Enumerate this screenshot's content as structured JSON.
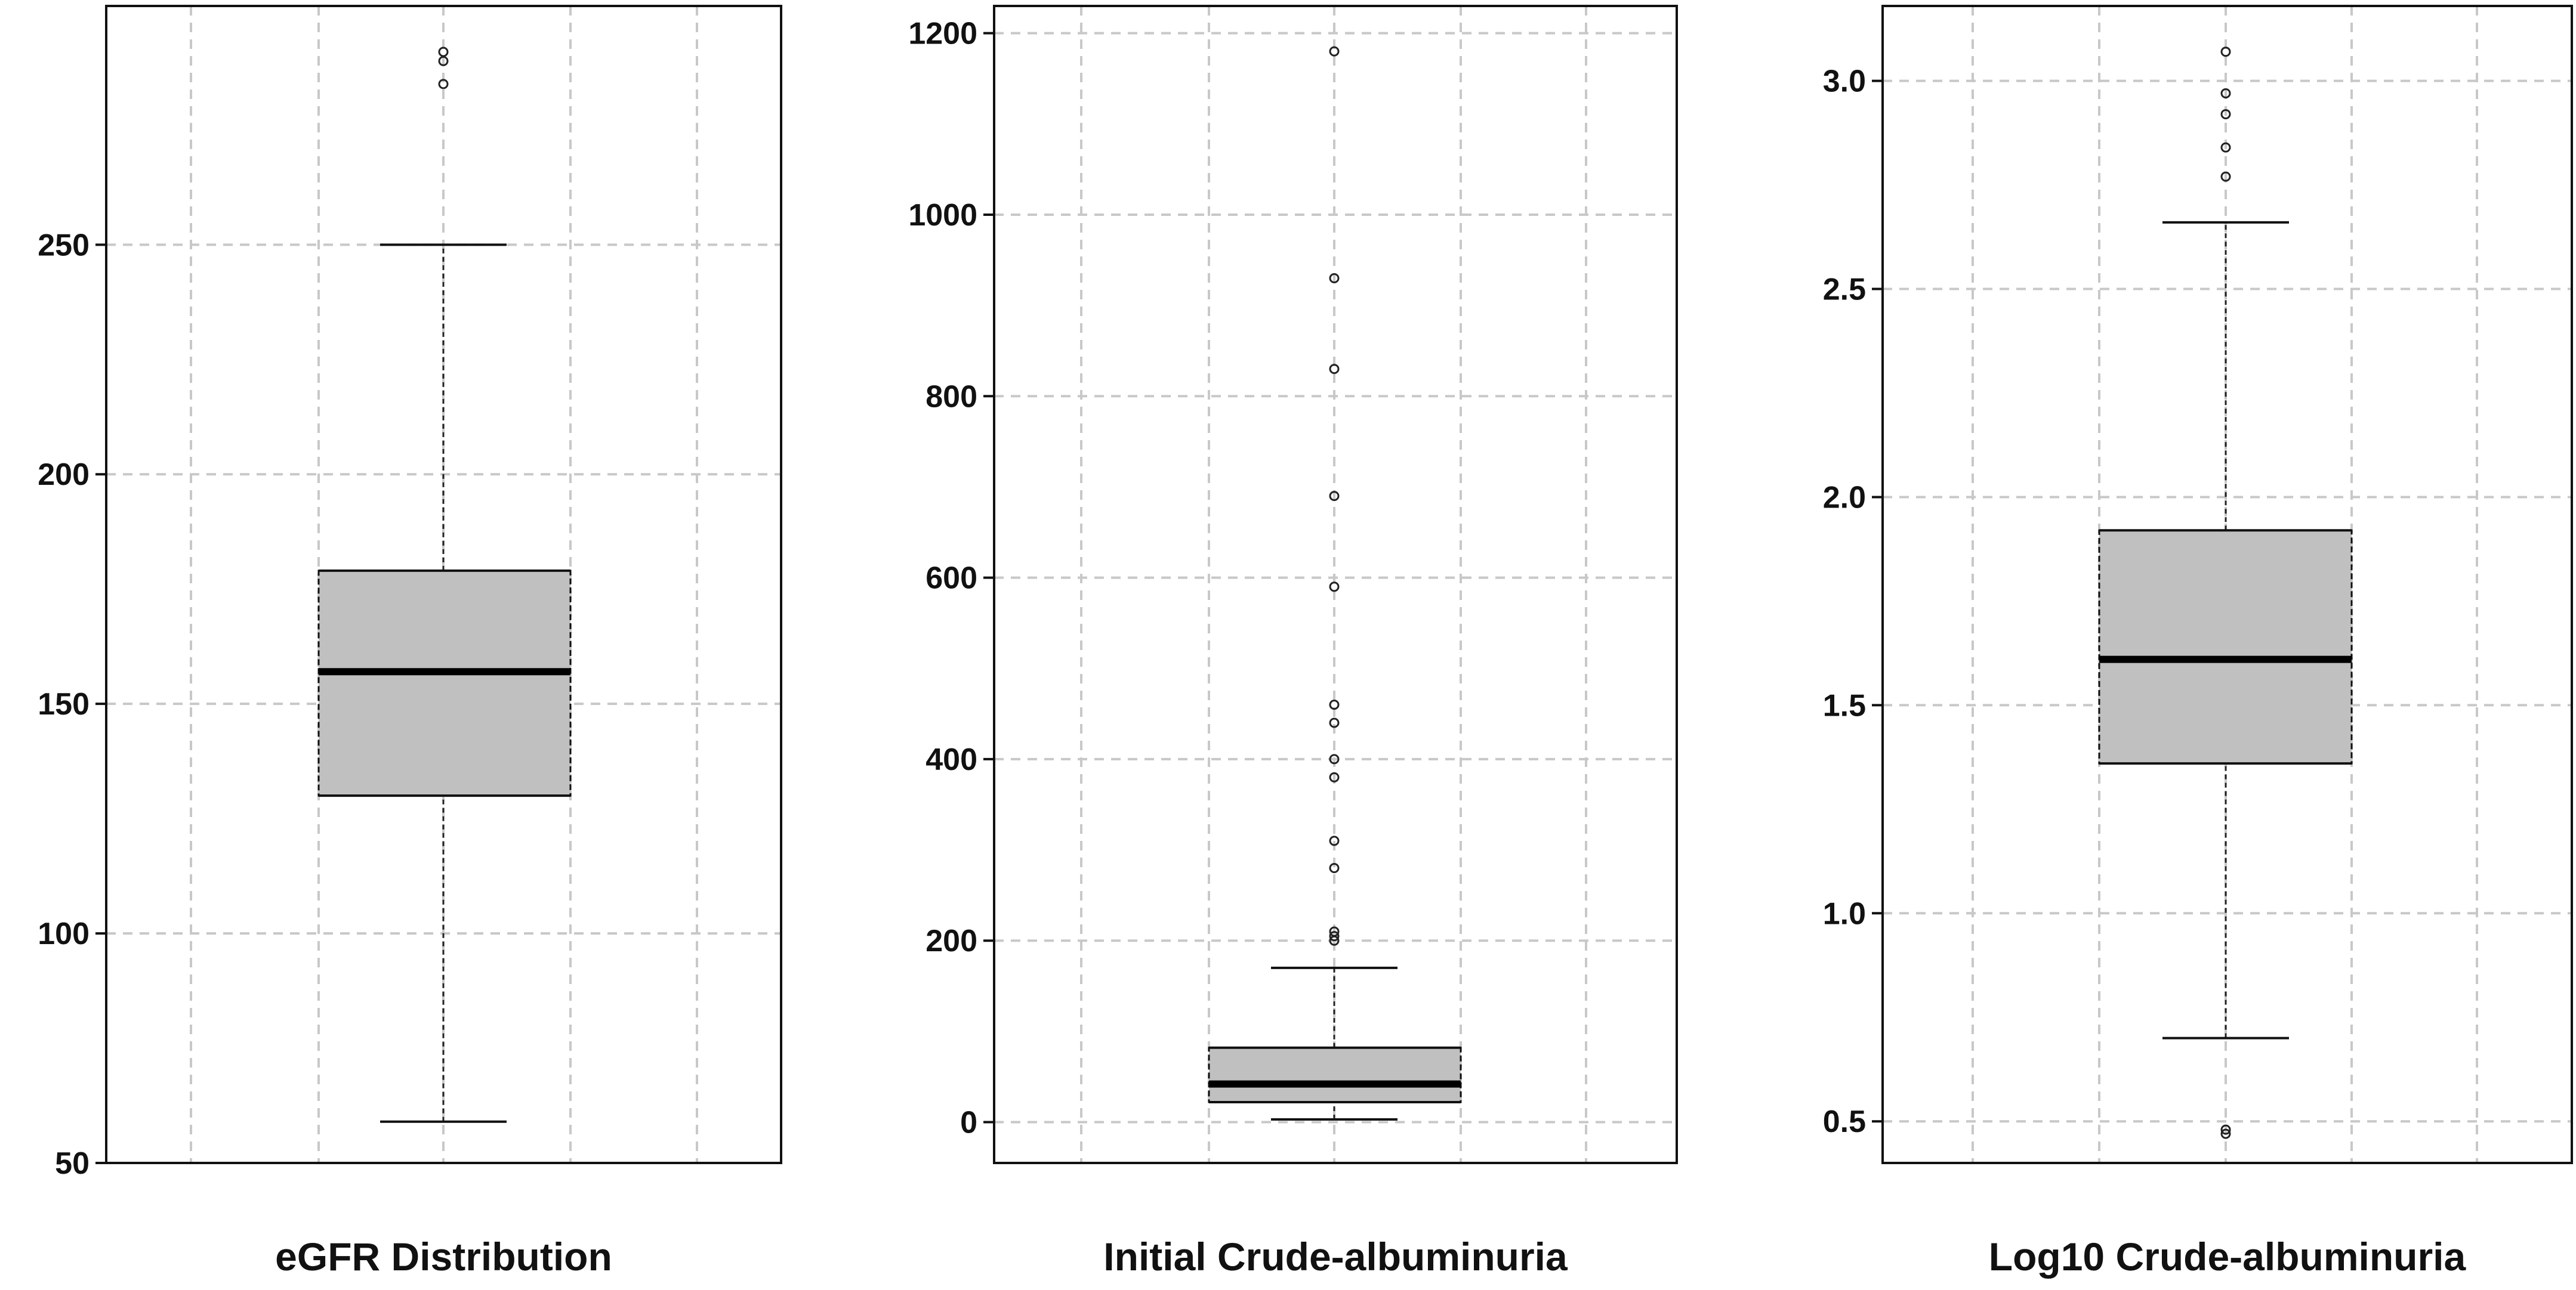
{
  "chart_data": [
    {
      "type": "box",
      "xlabel": "eGFR Distribution",
      "ylim": [
        50,
        302
      ],
      "yticks": [
        50,
        100,
        150,
        200,
        250
      ],
      "ytick_labels": [
        "50",
        "100",
        "150",
        "200",
        "250"
      ],
      "grid": true,
      "box": {
        "whisker_low": 59,
        "q1": 130,
        "median": 157,
        "q3": 179,
        "whisker_high": 250
      },
      "outliers": [
        285,
        290,
        292
      ]
    },
    {
      "type": "box",
      "xlabel": "Initial Crude-albuminuria",
      "ylim": [
        -45,
        1230
      ],
      "yticks": [
        0,
        200,
        400,
        600,
        800,
        1000,
        1200
      ],
      "ytick_labels": [
        "0",
        "200",
        "400",
        "600",
        "800",
        "1000",
        "1200"
      ],
      "grid": true,
      "box": {
        "whisker_low": 3,
        "q1": 22,
        "median": 42,
        "q3": 82,
        "whisker_high": 170
      },
      "outliers": [
        200,
        205,
        210,
        280,
        310,
        380,
        400,
        440,
        460,
        590,
        690,
        830,
        930,
        1180
      ]
    },
    {
      "type": "box",
      "xlabel": "Log10 Crude-albuminuria",
      "ylim": [
        0.4,
        3.18
      ],
      "yticks": [
        0.5,
        1.0,
        1.5,
        2.0,
        2.5,
        3.0
      ],
      "ytick_labels": [
        "0.5",
        "1.0",
        "1.5",
        "2.0",
        "2.5",
        "3.0"
      ],
      "grid": true,
      "box": {
        "whisker_low": 0.7,
        "q1": 1.36,
        "median": 1.61,
        "q3": 1.92,
        "whisker_high": 2.66
      },
      "outliers": [
        0.47,
        0.48,
        2.77,
        2.84,
        2.92,
        2.97,
        3.07
      ]
    }
  ]
}
